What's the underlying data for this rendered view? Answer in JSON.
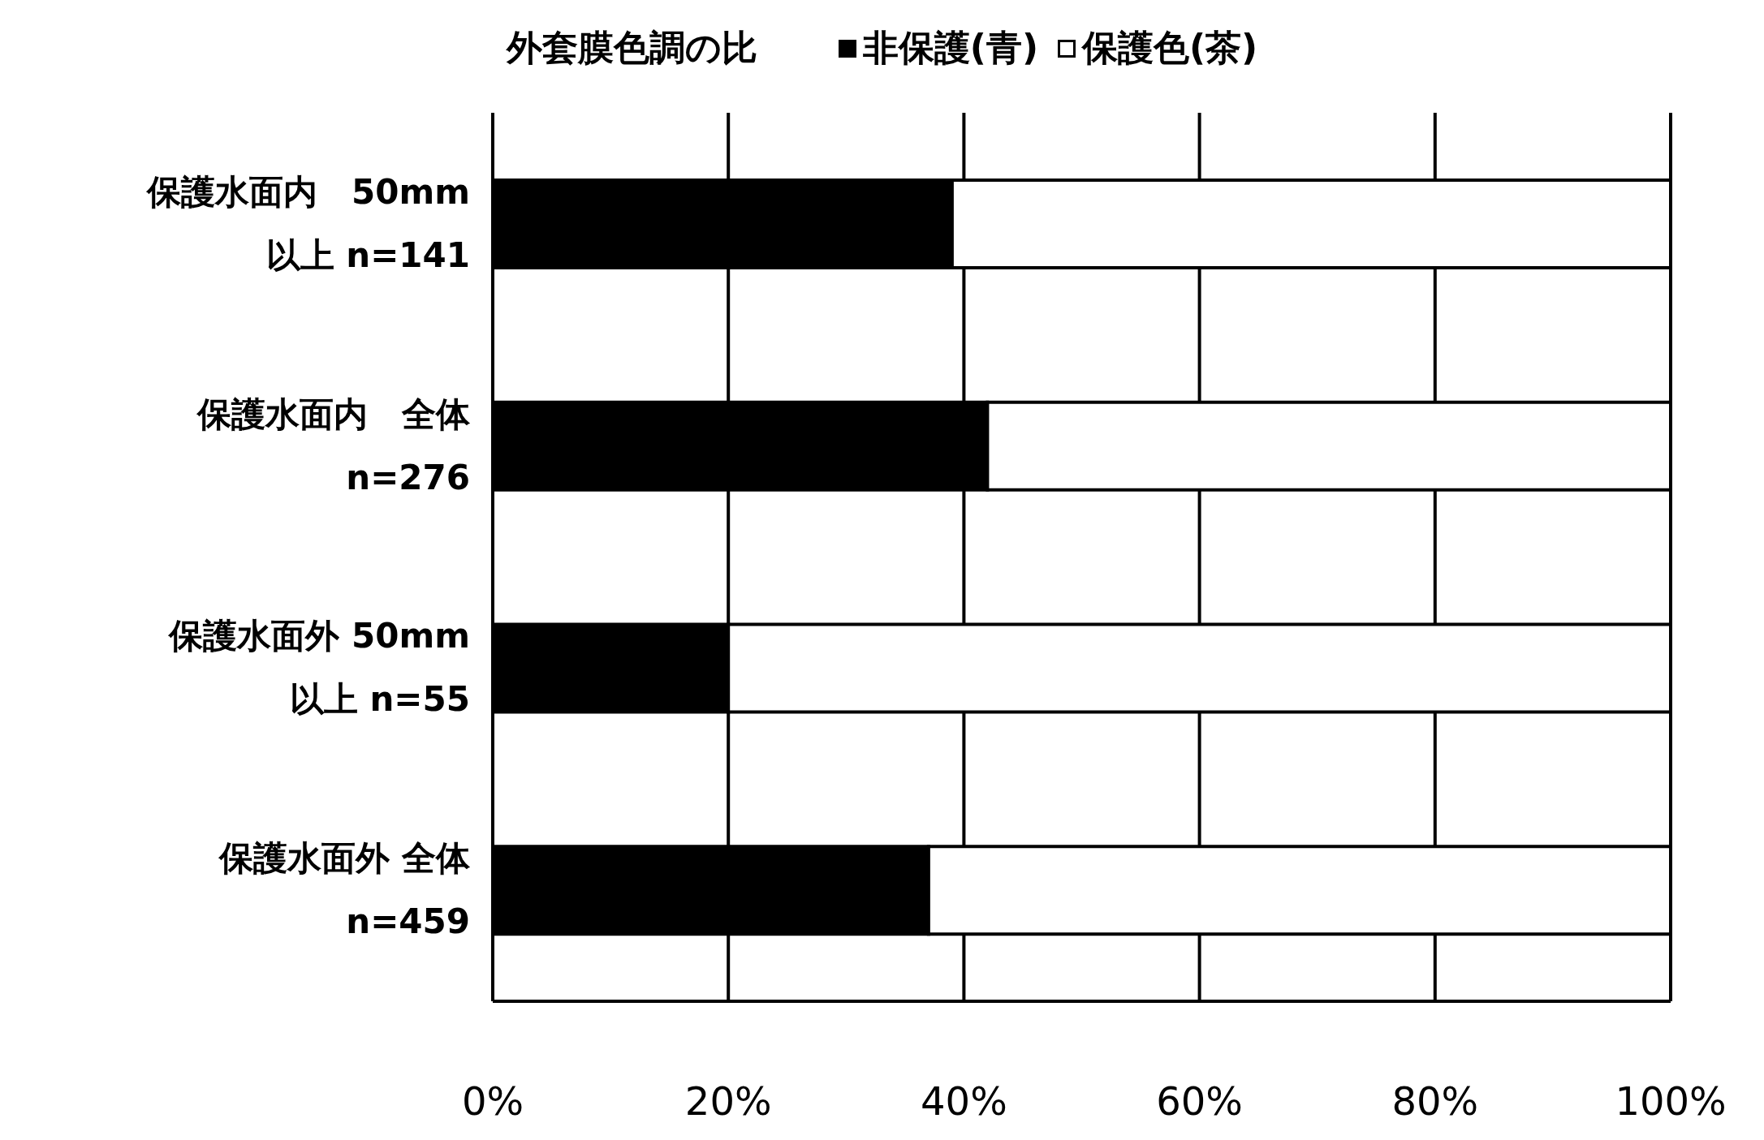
{
  "chart_data": {
    "type": "bar",
    "orientation": "horizontal",
    "stacked": true,
    "title": "外套膜色調の比",
    "categories": [
      "保護水面内　50mm\n以上 n=141",
      "保護水面内　全体\nn=276",
      "保護水面外 50mm\n以上 n=55",
      "保護水面外 全体\nn=459"
    ],
    "series": [
      {
        "name": "非保護(青)",
        "color": "#000000",
        "values": [
          39,
          42,
          20,
          37
        ]
      },
      {
        "name": "保護色(茶)",
        "color": "#ffffff",
        "values": [
          61,
          58,
          80,
          63
        ]
      }
    ],
    "xlim": [
      0,
      100
    ],
    "xticks": [
      {
        "value": 0,
        "label": "0%"
      },
      {
        "value": 20,
        "label": "20%"
      },
      {
        "value": 40,
        "label": "40%"
      },
      {
        "value": 60,
        "label": "60%"
      },
      {
        "value": 80,
        "label": "80%"
      },
      {
        "value": 100,
        "label": "100%"
      }
    ],
    "grid": "x",
    "legend": "top"
  }
}
